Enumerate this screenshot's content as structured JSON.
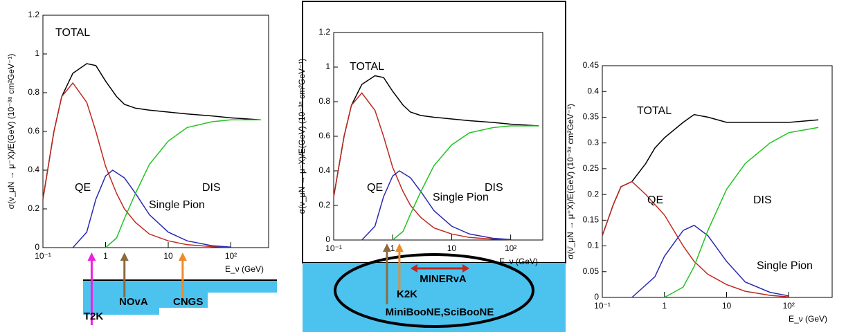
{
  "chart_data": [
    {
      "type": "line",
      "log_x": true,
      "y_label": "σ(ν_μN → μ⁻X)/E(GeV)  (10⁻³⁸ cm²GeV⁻¹)",
      "x_label": "E_ν (GeV)",
      "xlim": [
        0.1,
        400
      ],
      "xticks": [
        {
          "value": 0.1,
          "label": "10⁻¹"
        },
        1,
        10,
        {
          "value": 100,
          "label": "10²"
        }
      ],
      "ylim": [
        0,
        1.2
      ],
      "yticks": [
        0,
        0.2,
        0.4,
        0.6,
        0.8,
        1,
        1.2
      ],
      "series": [
        {
          "name": "TOTAL",
          "color": "#000000",
          "x": [
            0.1,
            0.15,
            0.2,
            0.3,
            0.5,
            0.7,
            1,
            1.5,
            2,
            3,
            5,
            10,
            20,
            50,
            100,
            300
          ],
          "values": [
            0.25,
            0.6,
            0.78,
            0.9,
            0.95,
            0.94,
            0.86,
            0.78,
            0.74,
            0.72,
            0.71,
            0.7,
            0.69,
            0.68,
            0.67,
            0.66
          ]
        },
        {
          "name": "QE",
          "color": "#c0281e",
          "x": [
            0.1,
            0.15,
            0.2,
            0.3,
            0.5,
            0.7,
            1,
            1.5,
            2,
            3,
            5,
            10,
            20,
            50,
            100
          ],
          "values": [
            0.25,
            0.6,
            0.78,
            0.85,
            0.75,
            0.6,
            0.42,
            0.28,
            0.2,
            0.13,
            0.07,
            0.035,
            0.015,
            0.005,
            0.002
          ]
        },
        {
          "name": "Single Pion",
          "color": "#2a2ab0",
          "x": [
            0.3,
            0.5,
            0.7,
            1,
            1.3,
            2,
            3,
            5,
            10,
            20,
            50,
            100
          ],
          "values": [
            0,
            0.08,
            0.25,
            0.37,
            0.4,
            0.36,
            0.28,
            0.17,
            0.08,
            0.035,
            0.01,
            0.003
          ]
        },
        {
          "name": "DIS",
          "color": "#22c322",
          "x": [
            1,
            1.5,
            2,
            3,
            5,
            10,
            20,
            50,
            100,
            300
          ],
          "values": [
            0,
            0.05,
            0.15,
            0.28,
            0.43,
            0.55,
            0.62,
            0.65,
            0.66,
            0.66
          ]
        }
      ],
      "annotations": [
        {
          "text": "T2K",
          "x": 0.6,
          "color": "#ee22dd"
        },
        {
          "text": "NOvA",
          "x": 2,
          "color": "#8b6a3e"
        },
        {
          "text": "CNGS",
          "x": 17,
          "color": "#ee8a2a"
        }
      ]
    },
    {
      "type": "line",
      "log_x": true,
      "y_label": "σ(ν_μN → μ⁻X)/E(GeV)  (10⁻³⁸ cm²GeV⁻¹)",
      "x_label": "E_ν (GeV)",
      "xlim": [
        0.1,
        350
      ],
      "xticks": [
        {
          "value": 0.1,
          "label": "10⁻¹"
        },
        1,
        10,
        {
          "value": 100,
          "label": "10²"
        }
      ],
      "ylim": [
        0,
        1.2
      ],
      "yticks": [
        0,
        0.2,
        0.4,
        0.6,
        0.8,
        1,
        1.2
      ],
      "series": [
        {
          "name": "TOTAL",
          "color": "#000000",
          "x": [
            0.1,
            0.15,
            0.2,
            0.3,
            0.5,
            0.7,
            1,
            1.5,
            2,
            3,
            5,
            10,
            20,
            50,
            100,
            300
          ],
          "values": [
            0.25,
            0.6,
            0.78,
            0.9,
            0.95,
            0.94,
            0.86,
            0.78,
            0.74,
            0.72,
            0.71,
            0.7,
            0.69,
            0.68,
            0.67,
            0.66
          ]
        },
        {
          "name": "QE",
          "color": "#c0281e",
          "x": [
            0.1,
            0.15,
            0.2,
            0.3,
            0.5,
            0.7,
            1,
            1.5,
            2,
            3,
            5,
            10,
            20,
            50,
            100
          ],
          "values": [
            0.25,
            0.6,
            0.78,
            0.85,
            0.75,
            0.6,
            0.42,
            0.28,
            0.2,
            0.13,
            0.07,
            0.035,
            0.015,
            0.005,
            0.002
          ]
        },
        {
          "name": "Single Pion",
          "color": "#2a2ab0",
          "x": [
            0.3,
            0.5,
            0.7,
            1,
            1.3,
            2,
            3,
            5,
            10,
            20,
            50,
            100
          ],
          "values": [
            0,
            0.08,
            0.25,
            0.37,
            0.4,
            0.36,
            0.28,
            0.17,
            0.08,
            0.035,
            0.01,
            0.003
          ]
        },
        {
          "name": "DIS",
          "color": "#22c322",
          "x": [
            1,
            1.5,
            2,
            3,
            5,
            10,
            20,
            50,
            100,
            300
          ],
          "values": [
            0,
            0.05,
            0.15,
            0.28,
            0.43,
            0.55,
            0.62,
            0.65,
            0.66,
            0.66
          ]
        }
      ],
      "annotations": [
        {
          "text": "MiniBooNE,SciBooNE",
          "x": 0.8,
          "color": "#8b6a3e"
        },
        {
          "text": "K2K",
          "x": 1.3,
          "color": "#ee8a2a"
        },
        {
          "text": "MINERvA",
          "x": [
            2,
            20
          ],
          "color": "#c0281e"
        }
      ]
    },
    {
      "type": "line",
      "log_x": true,
      "y_label": "σ(ν̄_μN → μ⁺X)/E(GeV)  (10⁻³⁸ cm²GeV⁻¹)",
      "x_label": "E_ν (GeV)",
      "xlim": [
        0.1,
        500
      ],
      "xticks": [
        {
          "value": 0.1,
          "label": "10⁻¹"
        },
        1,
        10,
        {
          "value": 100,
          "label": "10²"
        }
      ],
      "ylim": [
        0,
        0.45
      ],
      "yticks": [
        0,
        0.05,
        0.1,
        0.15,
        0.2,
        0.25,
        0.3,
        0.35,
        0.4,
        0.45
      ],
      "series": [
        {
          "name": "TOTAL",
          "color": "#000000",
          "x": [
            0.1,
            0.15,
            0.2,
            0.3,
            0.5,
            0.7,
            1,
            2,
            3,
            5,
            10,
            20,
            50,
            100,
            300
          ],
          "values": [
            0.12,
            0.18,
            0.215,
            0.225,
            0.26,
            0.29,
            0.31,
            0.34,
            0.355,
            0.35,
            0.34,
            0.34,
            0.34,
            0.34,
            0.345
          ]
        },
        {
          "name": "QE",
          "color": "#c0281e",
          "x": [
            0.1,
            0.15,
            0.2,
            0.3,
            0.5,
            1,
            2,
            3,
            5,
            10,
            20,
            50,
            100
          ],
          "values": [
            0.12,
            0.18,
            0.215,
            0.225,
            0.2,
            0.16,
            0.1,
            0.07,
            0.045,
            0.025,
            0.012,
            0.004,
            0.001
          ]
        },
        {
          "name": "Single Pion",
          "color": "#2a2ab0",
          "x": [
            0.3,
            0.7,
            1,
            2,
            3,
            5,
            10,
            20,
            50,
            100
          ],
          "values": [
            0,
            0.04,
            0.08,
            0.13,
            0.14,
            0.12,
            0.07,
            0.03,
            0.01,
            0.003
          ]
        },
        {
          "name": "DIS",
          "color": "#22c322",
          "x": [
            1,
            2,
            3,
            5,
            10,
            20,
            50,
            100,
            300
          ],
          "values": [
            0,
            0.02,
            0.06,
            0.13,
            0.21,
            0.26,
            0.3,
            0.32,
            0.33
          ]
        }
      ],
      "annotations": []
    }
  ]
}
